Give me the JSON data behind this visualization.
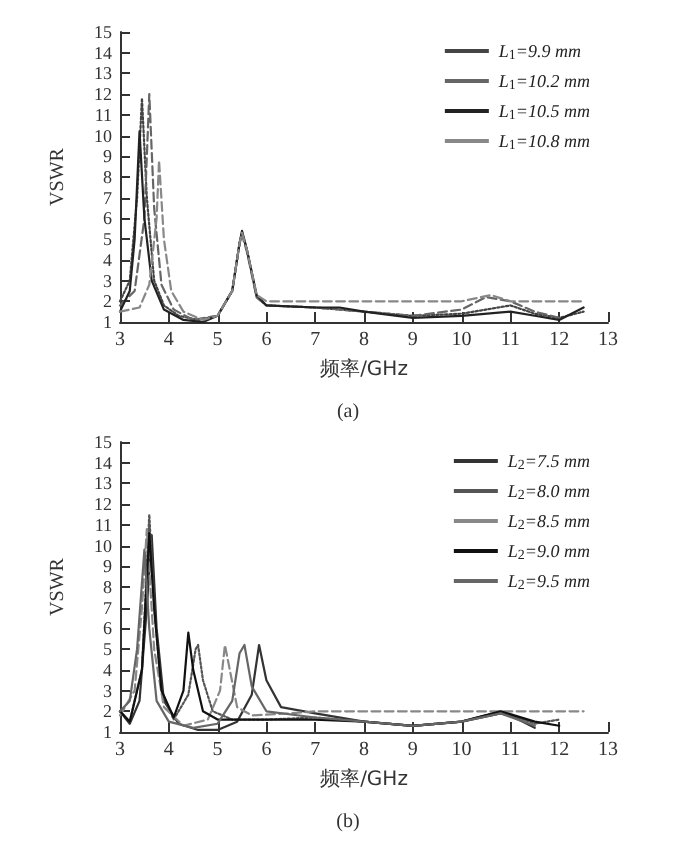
{
  "chart_data": [
    {
      "type": "line",
      "xlabel": "频率/GHz",
      "ylabel": "VSWR",
      "annotations": [
        "(a)"
      ],
      "xlim": [
        3,
        13
      ],
      "ylim": [
        1,
        15
      ],
      "xticks": [
        3,
        4,
        5,
        6,
        7,
        8,
        9,
        10,
        11,
        12,
        13
      ],
      "yticks": [
        1,
        2,
        3,
        4,
        5,
        6,
        7,
        8,
        9,
        10,
        11,
        12,
        13,
        14,
        15
      ],
      "grid": false,
      "legend": "top right",
      "marker": "none",
      "series": [
        {
          "name": "L$_{1}$=9.9 mm",
          "color": "#444444",
          "line_style": "dotted",
          "x": [
            3,
            3.2,
            3.35,
            3.45,
            3.55,
            3.7,
            3.9,
            4.2,
            4.6,
            5,
            5.3,
            5.45,
            5.5,
            5.6,
            5.8,
            6,
            7,
            8,
            9,
            10,
            10.5,
            11,
            11.5,
            12,
            12.5
          ],
          "values": [
            2,
            3,
            7,
            11.8,
            7,
            3,
            1.8,
            1.3,
            1.1,
            1.3,
            2.5,
            4.8,
            5.3,
            4.5,
            2.2,
            1.8,
            1.7,
            1.5,
            1.3,
            1.4,
            1.6,
            1.8,
            1.4,
            1.2,
            1.5
          ]
        },
        {
          "name": "L$_{1}$=10.2 mm",
          "color": "#666666",
          "line_style": "dashed",
          "x": [
            3,
            3.3,
            3.5,
            3.6,
            3.7,
            3.85,
            4.1,
            4.5,
            5,
            5.3,
            5.45,
            5.5,
            5.6,
            5.8,
            6,
            7,
            8,
            9,
            10,
            10.5,
            11,
            11.5,
            12
          ],
          "values": [
            1.8,
            2.5,
            6,
            12,
            6.5,
            2.8,
            1.6,
            1.1,
            1.3,
            2.5,
            4.8,
            5.2,
            4.4,
            2.2,
            1.8,
            1.7,
            1.5,
            1.3,
            1.6,
            2.2,
            2,
            1.5,
            1.2
          ]
        },
        {
          "name": "L$_{1}$=10.5 mm",
          "color": "#222222",
          "line_style": "solid",
          "x": [
            3,
            3.2,
            3.3,
            3.4,
            3.5,
            3.65,
            3.9,
            4.3,
            4.7,
            5,
            5.3,
            5.45,
            5.5,
            5.6,
            5.8,
            6,
            7,
            7.5,
            8,
            9,
            10,
            11,
            11.5,
            12,
            12.5
          ],
          "values": [
            1.5,
            2.5,
            5,
            10.2,
            6,
            3,
            1.6,
            1.1,
            1,
            1.3,
            2.5,
            4.8,
            5.4,
            4.5,
            2.3,
            1.8,
            1.7,
            1.7,
            1.5,
            1.2,
            1.3,
            1.5,
            1.3,
            1.1,
            1.7
          ]
        },
        {
          "name": "L$_{1}$=10.8 mm",
          "color": "#888888",
          "line_style": "dashed",
          "x": [
            3,
            3.4,
            3.6,
            3.75,
            3.8,
            3.9,
            4.05,
            4.3,
            4.7,
            5,
            5.3,
            5.45,
            5.5,
            5.6,
            5.8,
            6,
            7,
            8,
            9,
            10,
            10.6,
            11,
            11.5,
            12,
            12.5
          ],
          "values": [
            1.5,
            1.7,
            2.8,
            6,
            8.8,
            5,
            2.5,
            1.5,
            1.1,
            1.3,
            2.5,
            4.8,
            5.3,
            4.5,
            2.3,
            2,
            2,
            2,
            2,
            2,
            2.3,
            2,
            2,
            2,
            2
          ]
        }
      ]
    },
    {
      "type": "line",
      "xlabel": "频率/GHz",
      "ylabel": "VSWR",
      "annotations": [
        "(b)"
      ],
      "xlim": [
        3,
        13
      ],
      "ylim": [
        1,
        15
      ],
      "xticks": [
        3,
        4,
        5,
        6,
        7,
        8,
        9,
        10,
        11,
        12,
        13
      ],
      "yticks": [
        1,
        2,
        3,
        4,
        5,
        6,
        7,
        8,
        9,
        10,
        11,
        12,
        13,
        14,
        15
      ],
      "grid": false,
      "legend": "top right",
      "marker": "none",
      "series": [
        {
          "name": "L$_{2}$=7.5 mm",
          "color": "#333333",
          "line_style": "solid",
          "x": [
            3,
            3.2,
            3.4,
            3.55,
            3.65,
            3.75,
            3.9,
            4.2,
            4.6,
            5,
            5.4,
            5.7,
            5.85,
            6,
            6.3,
            7,
            8,
            9,
            10,
            10.8,
            11,
            11.5
          ],
          "values": [
            2,
            1.4,
            2.5,
            7,
            10.5,
            6,
            2.5,
            1.4,
            1.1,
            1.1,
            1.5,
            2.8,
            5.2,
            3.5,
            2.2,
            1.9,
            1.5,
            1.3,
            1.5,
            1.9,
            1.8,
            1.2
          ]
        },
        {
          "name": "L$_{2}$=8.0 mm",
          "color": "#555555",
          "line_style": "dotted",
          "x": [
            3,
            3.2,
            3.45,
            3.6,
            3.7,
            3.85,
            4.1,
            4.4,
            4.55,
            4.6,
            4.7,
            4.9,
            5.3,
            6,
            7,
            8,
            9,
            10,
            10.8,
            11.5,
            12
          ],
          "values": [
            2,
            1.5,
            4,
            11.5,
            7,
            3,
            1.6,
            2.8,
            5,
            5.2,
            3.5,
            2,
            1.6,
            1.6,
            1.7,
            1.5,
            1.3,
            1.5,
            2,
            1.4,
            1.6
          ]
        },
        {
          "name": "L$_{2}$=8.5 mm",
          "color": "#888888",
          "line_style": "dashed",
          "x": [
            3,
            3.3,
            3.45,
            3.55,
            3.7,
            3.9,
            4.3,
            4.8,
            5.05,
            5.15,
            5.25,
            5.4,
            5.7,
            6.5,
            7,
            8,
            9,
            10,
            10.8,
            11.5,
            12.5
          ],
          "values": [
            1.8,
            3,
            7,
            10.8,
            5,
            2.2,
            1.3,
            1.6,
            3,
            5.2,
            4,
            2.2,
            1.8,
            1.9,
            2,
            2,
            2,
            2,
            2,
            2,
            2
          ]
        },
        {
          "name": "L$_{2}$=9.0 mm",
          "color": "#111111",
          "line_style": "solid",
          "x": [
            3,
            3.2,
            3.45,
            3.6,
            3.7,
            3.85,
            4.1,
            4.3,
            4.4,
            4.5,
            4.7,
            5,
            6,
            7,
            8,
            9,
            10,
            10.8,
            11.5,
            12
          ],
          "values": [
            2,
            1.5,
            4,
            10.6,
            7,
            3,
            1.7,
            3,
            5.8,
            4,
            2,
            1.6,
            1.6,
            1.6,
            1.5,
            1.3,
            1.5,
            2,
            1.5,
            1.3
          ]
        },
        {
          "name": "L$_{2}$=9.5 mm",
          "color": "#666666",
          "line_style": "solid",
          "x": [
            3,
            3.2,
            3.35,
            3.5,
            3.6,
            3.75,
            4,
            4.5,
            5,
            5.3,
            5.45,
            5.55,
            5.7,
            6,
            7,
            8,
            9,
            10,
            10.8,
            11.5
          ],
          "values": [
            2,
            2.5,
            5,
            9.8,
            6,
            2.5,
            1.5,
            1.2,
            1.4,
            2.5,
            4.8,
            5.2,
            3.2,
            2,
            1.7,
            1.5,
            1.3,
            1.5,
            1.9,
            1.3
          ]
        }
      ]
    }
  ]
}
